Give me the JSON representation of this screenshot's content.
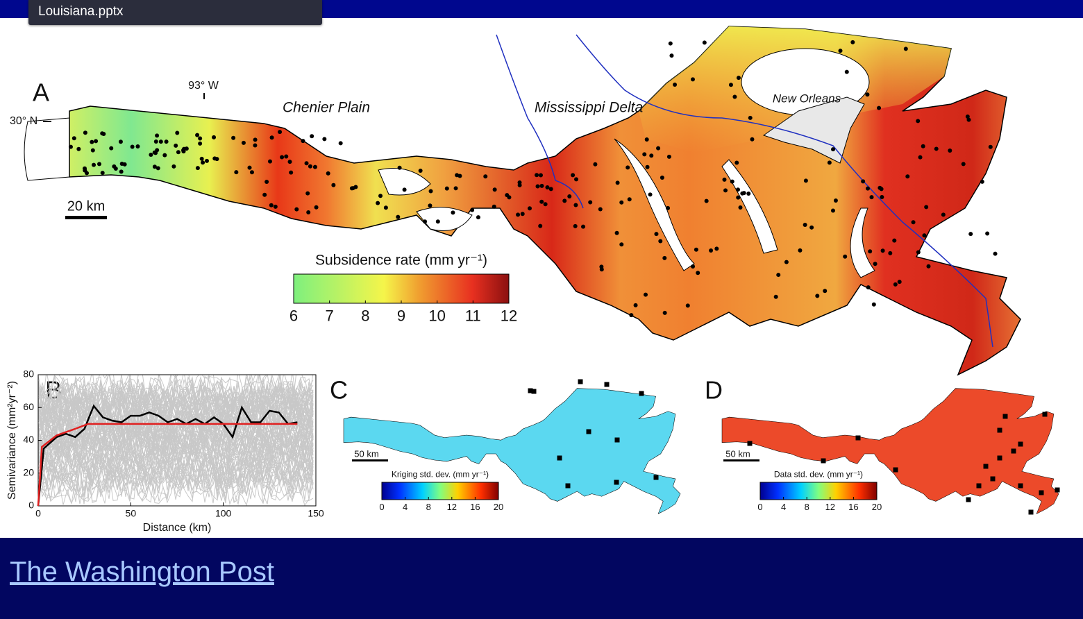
{
  "tab": {
    "title": "Louisiana.pptx"
  },
  "figure": {
    "panel_a": {
      "label": "A",
      "longitude": "93° W",
      "latitude": "30° N",
      "regions": [
        "Chenier Plain",
        "Mississippi Delta"
      ],
      "city": "New Orleans",
      "scale_bar": "20 km",
      "colorbar": {
        "title": "Subsidence rate (mm yr⁻¹)",
        "lim": [
          6,
          12
        ],
        "ticks": [
          6,
          7,
          8,
          9,
          10,
          11,
          12
        ]
      }
    },
    "panel_b": {
      "label": "B",
      "type": "line",
      "x_label": "Distance (km)",
      "y_label": "Semivariance (mm²yr⁻²)",
      "xlim": [
        0,
        150
      ],
      "ylim": [
        0,
        80
      ],
      "xticks": [
        0,
        50,
        100,
        150
      ],
      "yticks": [
        0,
        20,
        40,
        60,
        80
      ],
      "series": [
        {
          "color": "#000000",
          "x": [
            0,
            3,
            10,
            15,
            20,
            25,
            30,
            35,
            40,
            45,
            50,
            55,
            60,
            65,
            70,
            75,
            80,
            85,
            90,
            95,
            100,
            105,
            110,
            115,
            120,
            125,
            130,
            135,
            140
          ],
          "values": [
            0,
            35,
            42,
            44,
            42,
            47,
            61,
            54,
            52,
            51,
            55,
            55,
            57,
            55,
            51,
            53,
            50,
            53,
            50,
            54,
            50,
            42,
            60,
            51,
            51,
            58,
            57,
            50,
            51
          ]
        },
        {
          "color": "#e02020",
          "x": [
            0,
            2,
            10,
            20,
            27,
            140
          ],
          "values": [
            0,
            36,
            43,
            47,
            50,
            50
          ]
        }
      ]
    },
    "panel_c": {
      "label": "C",
      "scale_bar": "50 km",
      "colorbar": {
        "title": "Kriging std. dev. (mm yr⁻¹)",
        "lim": [
          0,
          20
        ],
        "ticks": [
          0,
          4,
          8,
          12,
          16,
          20
        ]
      }
    },
    "panel_d": {
      "label": "D",
      "scale_bar": "50 km",
      "colorbar": {
        "title": "Data std. dev. (mm yr⁻¹)",
        "lim": [
          0,
          20
        ],
        "ticks": [
          0,
          4,
          8,
          12,
          16,
          20
        ]
      }
    }
  },
  "footer": {
    "link": "The Washington Post"
  }
}
